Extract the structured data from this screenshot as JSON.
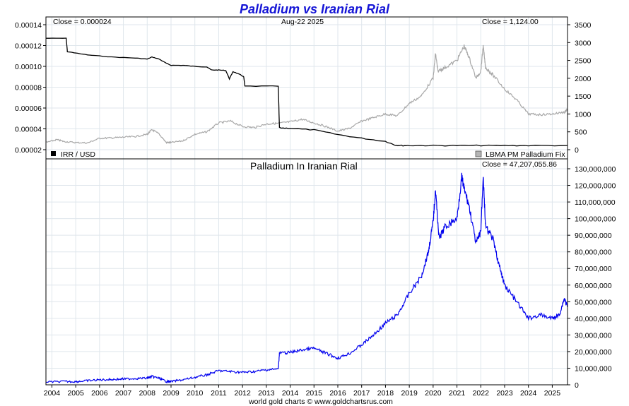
{
  "title": "Palladium vs Iranian Rial",
  "footer": "world gold charts © www.goldchartsrus.com",
  "top_panel": {
    "close_left": "Close = 0.000024",
    "date": "Aug-22  2025",
    "close_right": "Close = 1,124.00",
    "legend_left": "IRR / USD",
    "legend_right": "LBMA PM Palladium Fix",
    "left_ticks": [
      "0.00014",
      "0.00012",
      "0.00010",
      "0.00008",
      "0.00006",
      "0.00004",
      "0.00002"
    ],
    "right_ticks": [
      "3500",
      "3000",
      "2500",
      "2000",
      "1500",
      "1000",
      "500",
      "0"
    ]
  },
  "bottom_panel": {
    "subtitle": "Palladium In Iranian Rial",
    "close": "Close = 47,207,055.86",
    "right_ticks": [
      "130,000,000",
      "120,000,000",
      "110,000,000",
      "100,000,000",
      "90,000,000",
      "80,000,000",
      "70,000,000",
      "60,000,000",
      "50,000,000",
      "40,000,000",
      "30,000,000",
      "20,000,000",
      "10,000,000",
      "0"
    ]
  },
  "x_ticks": [
    "2004",
    "2005",
    "2006",
    "2007",
    "2008",
    "2009",
    "2010",
    "2011",
    "2012",
    "2013",
    "2014",
    "2015",
    "2016",
    "2017",
    "2018",
    "2019",
    "2020",
    "2021",
    "2022",
    "2023",
    "2024",
    "2025"
  ],
  "colors": {
    "irr": "#000000",
    "palladium": "#a8a8a8",
    "pd_irr": "#0000ee",
    "title": "#1515d6"
  },
  "chart_data": [
    {
      "type": "line",
      "title": "Palladium vs Iranian Rial",
      "x_range": [
        2003.75,
        2025.64
      ],
      "series": [
        {
          "name": "IRR / USD",
          "axis": "left",
          "ylim": [
            2e-05,
            0.00014
          ],
          "x": [
            2003.75,
            2004.6,
            2004.65,
            2005.5,
            2006.5,
            2007.5,
            2008.0,
            2008.2,
            2008.5,
            2008.8,
            2009.0,
            2009.5,
            2010.0,
            2010.5,
            2010.7,
            2011.0,
            2011.3,
            2011.45,
            2011.6,
            2011.9,
            2012.05,
            2012.1,
            2013.5,
            2013.55,
            2014.0,
            2015.0,
            2016.0,
            2017.0,
            2018.0,
            2018.4,
            2018.6,
            2019.0,
            2020.0,
            2021.0,
            2022.0,
            2023.0,
            2024.0,
            2025.64
          ],
          "values": [
            0.000127,
            0.000127,
            0.000114,
            0.000111,
            0.000109,
            0.000108,
            0.000107,
            0.000109,
            0.000107,
            0.000103,
            0.000101,
            0.000101,
            0.0001,
            9.95e-05,
            9.65e-05,
            9.65e-05,
            9.6e-05,
            8.8e-05,
            9.5e-05,
            9.2e-05,
            9e-05,
            8.1e-05,
            8.1e-05,
            4.1e-05,
            4.05e-05,
            3.9e-05,
            3.45e-05,
            3.1e-05,
            2.8e-05,
            2.45e-05,
            2.4e-05,
            2.4e-05,
            2.4e-05,
            2.4e-05,
            2.4e-05,
            2.4e-05,
            2.4e-05,
            2.4e-05
          ]
        },
        {
          "name": "LBMA PM Palladium Fix",
          "axis": "right",
          "ylim": [
            0,
            3500
          ],
          "x": [
            2003.75,
            2004.2,
            2004.5,
            2005.0,
            2005.5,
            2006.0,
            2006.5,
            2007.0,
            2007.5,
            2008.0,
            2008.2,
            2008.5,
            2008.8,
            2009.0,
            2009.5,
            2010.0,
            2010.5,
            2011.0,
            2011.5,
            2012.0,
            2012.5,
            2013.0,
            2013.5,
            2014.0,
            2014.5,
            2015.0,
            2015.5,
            2016.0,
            2016.5,
            2017.0,
            2017.5,
            2018.0,
            2018.5,
            2019.0,
            2019.5,
            2020.0,
            2020.1,
            2020.2,
            2020.5,
            2021.0,
            2021.3,
            2021.5,
            2021.8,
            2022.0,
            2022.1,
            2022.2,
            2022.5,
            2023.0,
            2023.5,
            2024.0,
            2024.5,
            2025.0,
            2025.5,
            2025.64
          ],
          "values": [
            200,
            280,
            230,
            200,
            190,
            320,
            330,
            350,
            370,
            430,
            560,
            440,
            200,
            200,
            250,
            430,
            500,
            750,
            800,
            650,
            620,
            720,
            740,
            780,
            850,
            750,
            650,
            520,
            600,
            800,
            900,
            1000,
            950,
            1300,
            1500,
            2000,
            2700,
            2200,
            2300,
            2500,
            2900,
            2600,
            2000,
            2200,
            2900,
            2300,
            2100,
            1700,
            1400,
            1000,
            980,
            1000,
            1050,
            1124
          ]
        }
      ]
    },
    {
      "type": "line",
      "title": "Palladium In Iranian Rial",
      "x_range": [
        2003.75,
        2025.64
      ],
      "ylim": [
        0,
        130000000
      ],
      "series": [
        {
          "x": [
            2003.75,
            2004.5,
            2005.0,
            2005.5,
            2006.0,
            2006.5,
            2007.0,
            2007.5,
            2008.0,
            2008.2,
            2008.5,
            2008.8,
            2009.0,
            2009.5,
            2010.0,
            2010.5,
            2011.0,
            2011.5,
            2012.0,
            2012.5,
            2013.0,
            2013.5,
            2013.55,
            2014.0,
            2014.5,
            2015.0,
            2015.5,
            2016.0,
            2016.5,
            2017.0,
            2017.5,
            2018.0,
            2018.5,
            2019.0,
            2019.5,
            2019.8,
            2020.0,
            2020.1,
            2020.25,
            2020.5,
            2021.0,
            2021.2,
            2021.3,
            2021.5,
            2021.8,
            2022.0,
            2022.1,
            2022.2,
            2022.5,
            2022.8,
            2023.0,
            2023.5,
            2024.0,
            2024.5,
            2025.0,
            2025.3,
            2025.5,
            2025.64
          ],
          "values": [
            1700000,
            2000000,
            1900000,
            2500000,
            3000000,
            3200000,
            3500000,
            3800000,
            4000000,
            5000000,
            4000000,
            2000000,
            2000000,
            3000000,
            4500000,
            6000000,
            8500000,
            8000000,
            7500000,
            8000000,
            9000000,
            9500000,
            19000000,
            19500000,
            21000000,
            22000000,
            19000000,
            16000000,
            19000000,
            24000000,
            30000000,
            37000000,
            42000000,
            55000000,
            65000000,
            80000000,
            98000000,
            117000000,
            88000000,
            95000000,
            100000000,
            125000000,
            118000000,
            108000000,
            85000000,
            92000000,
            126000000,
            95000000,
            88000000,
            70000000,
            60000000,
            50000000,
            40000000,
            42000000,
            40000000,
            42000000,
            52000000,
            47207056
          ]
        }
      ]
    }
  ]
}
